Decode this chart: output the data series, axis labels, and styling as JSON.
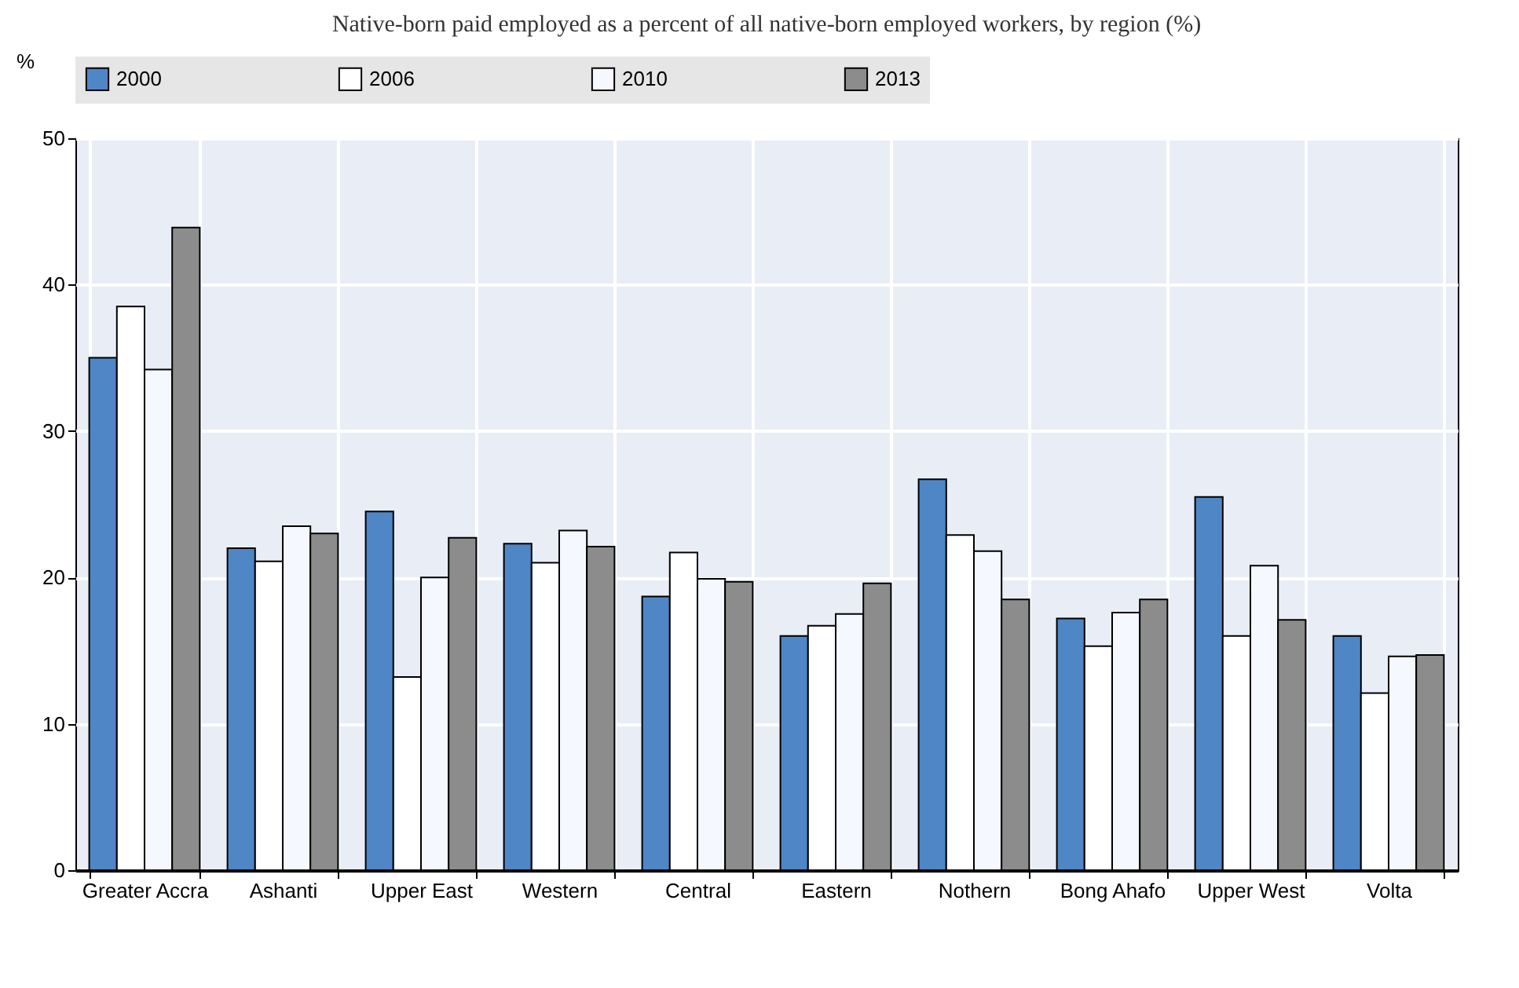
{
  "chart_data": {
    "type": "bar",
    "title": "Native-born paid employed as a percent of all native-born employed workers, by region (%)",
    "ylabel": "%",
    "categories": [
      "Greater Accra",
      "Ashanti",
      "Upper East",
      "Western",
      "Central",
      "Eastern",
      "Nothern",
      "Bong Ahafo",
      "Upper West",
      "Volta"
    ],
    "series": [
      {
        "name": "2000",
        "color": "#4e86c6",
        "values": [
          35.0,
          22.0,
          24.5,
          22.3,
          18.7,
          16.0,
          26.7,
          17.2,
          25.5,
          16.0
        ]
      },
      {
        "name": "2006",
        "color": "#ffffff",
        "values": [
          38.5,
          21.1,
          13.2,
          21.0,
          21.7,
          16.7,
          22.9,
          15.3,
          16.0,
          12.1
        ]
      },
      {
        "name": "2010",
        "color": "#f5f8ff",
        "values": [
          34.2,
          23.5,
          20.0,
          23.2,
          19.9,
          17.5,
          21.8,
          17.6,
          20.8,
          14.6
        ]
      },
      {
        "name": "2013",
        "color": "#8c8c8c",
        "values": [
          43.9,
          23.0,
          22.7,
          22.1,
          19.7,
          19.6,
          18.5,
          18.5,
          17.1,
          14.7
        ]
      }
    ],
    "ylim": [
      0,
      50
    ],
    "yticks": [
      0,
      10,
      20,
      30,
      40,
      50
    ],
    "grid": true,
    "legend": "top"
  }
}
